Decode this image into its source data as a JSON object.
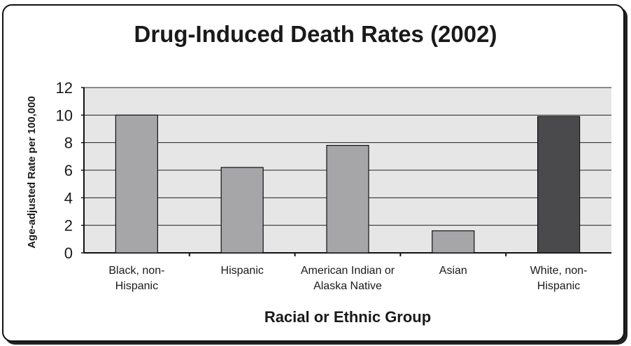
{
  "chart_data": {
    "type": "bar",
    "title": "Drug-Induced Death Rates (2002)",
    "xlabel": "Racial or Ethnic Group",
    "ylabel": "Age-adjusted Rate per 100,000",
    "categories": [
      [
        "Black, non-",
        "Hispanic"
      ],
      [
        "Hispanic"
      ],
      [
        "American Indian or",
        "Alaska Native"
      ],
      [
        "Asian"
      ],
      [
        "White, non-",
        "Hispanic"
      ]
    ],
    "values": [
      10.0,
      6.2,
      7.8,
      1.6,
      9.9
    ],
    "bar_colors": [
      "#a6a6a8",
      "#a6a6a8",
      "#a6a6a8",
      "#a6a6a8",
      "#4a4a4c"
    ],
    "ylim": [
      0,
      12
    ],
    "yticks": [
      "0",
      "2",
      "4",
      "6",
      "8",
      "10",
      "12"
    ],
    "grid": true,
    "plot_background": "#e6e6e6"
  }
}
